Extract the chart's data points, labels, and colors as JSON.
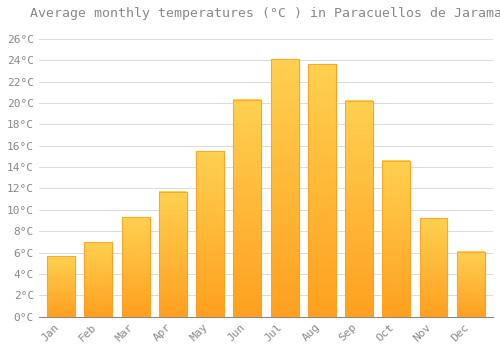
{
  "title": "Average monthly temperatures (°C ) in Paracuellos de Jarama",
  "months": [
    "Jan",
    "Feb",
    "Mar",
    "Apr",
    "May",
    "Jun",
    "Jul",
    "Aug",
    "Sep",
    "Oct",
    "Nov",
    "Dec"
  ],
  "values": [
    5.7,
    7.0,
    9.3,
    11.7,
    15.5,
    20.3,
    24.1,
    23.6,
    20.2,
    14.6,
    9.2,
    6.1
  ],
  "bar_color_bottom": "#FFA020",
  "bar_color_top": "#FFD050",
  "background_color": "#FFFFFF",
  "plot_bg_color": "#FFFFFF",
  "grid_color": "#CCCCCC",
  "text_color": "#888888",
  "ylim": [
    0,
    27
  ],
  "yticks": [
    0,
    2,
    4,
    6,
    8,
    10,
    12,
    14,
    16,
    18,
    20,
    22,
    24,
    26
  ],
  "title_fontsize": 9.5,
  "tick_fontsize": 8
}
